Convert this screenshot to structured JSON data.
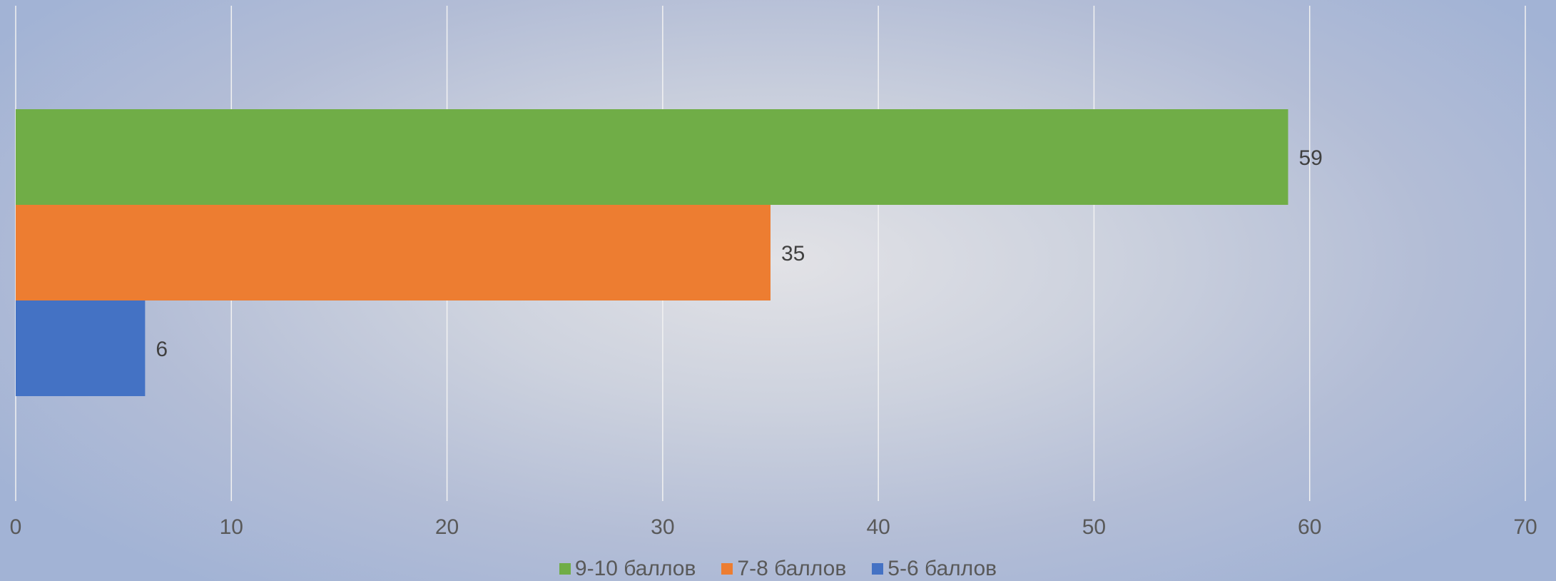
{
  "chart_data": {
    "type": "bar",
    "orientation": "horizontal",
    "title": "",
    "xlabel": "",
    "ylabel": "",
    "xlim": [
      0,
      70
    ],
    "x_ticks": [
      0,
      10,
      20,
      30,
      40,
      50,
      60,
      70
    ],
    "grid": true,
    "legend_position": "bottom",
    "series": [
      {
        "name": "9-10 баллов",
        "values": [
          59
        ],
        "color": "#70ad47"
      },
      {
        "name": "7-8 баллов",
        "values": [
          35
        ],
        "color": "#ed7d31"
      },
      {
        "name": "5-6 баллов",
        "values": [
          6
        ],
        "color": "#4472c4"
      }
    ]
  }
}
